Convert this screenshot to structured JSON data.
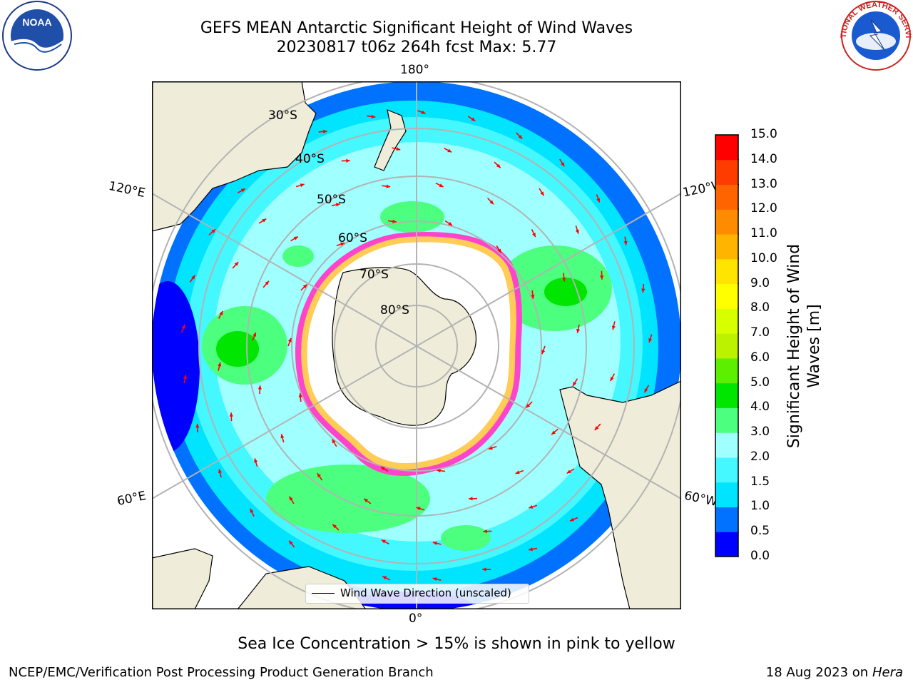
{
  "title": {
    "line1": "GEFS MEAN Antarctic Significant Height of Wind Waves",
    "line2": "20230817 t06z 264h fcst   Max: 5.77"
  },
  "map": {
    "projection": "south-polar-stereographic",
    "longitude_labels": {
      "top": "180°",
      "bottom": "0°",
      "upper_left": "120°E",
      "upper_right": "120°W",
      "lower_left": "60°E",
      "lower_right": "60°W"
    },
    "latitude_labels": [
      "30°S",
      "40°S",
      "50°S",
      "60°S",
      "70°S",
      "80°S"
    ],
    "legend_label": "Wind Wave Direction (unscaled)",
    "colors": {
      "land": "#efedd9",
      "sea_ice_masked": "#ffffff",
      "sea_ice_edge": "#ff44cc",
      "arrow": "#ff0000",
      "grid": "#b3b3b3"
    }
  },
  "colorbar": {
    "title": "Significant Height of Wind Waves [m]",
    "ticks": [
      "0.0",
      "0.5",
      "1.0",
      "1.5",
      "2.0",
      "3.0",
      "4.0",
      "5.0",
      "6.0",
      "7.0",
      "8.0",
      "9.0",
      "10.0",
      "11.0",
      "12.0",
      "13.0",
      "14.0",
      "15.0"
    ],
    "colors": [
      "#0000ff",
      "#0072ff",
      "#00e4ff",
      "#45f7ff",
      "#a0ffff",
      "#4cff7e",
      "#00e600",
      "#5cf000",
      "#bcf200",
      "#d8ff00",
      "#ffff00",
      "#ffe400",
      "#ffb400",
      "#ff8c00",
      "#ff6400",
      "#ff3c00",
      "#ff0000"
    ]
  },
  "note": "Sea Ice Concentration > 15% is shown in pink to yellow",
  "footer": {
    "left": "NCEP/EMC/Verification Post Processing Product Generation Branch",
    "right_date": "18 Aug 2023 on",
    "right_machine": "Hera"
  },
  "logos": {
    "noaa": "NOAA",
    "nws": "NATIONAL WEATHER SERVICE"
  }
}
